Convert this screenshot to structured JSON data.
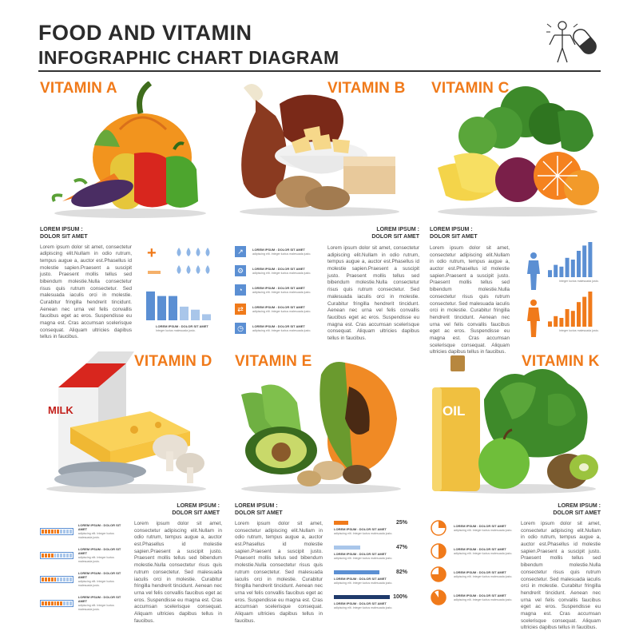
{
  "header": {
    "title_line1": "FOOD AND VITAMIN",
    "title_line2": "INFOGRAPHIC CHART DIAGRAM",
    "logo_icon": "human-body-and-pill-icon"
  },
  "colors": {
    "accent_orange": "#f07a1a",
    "accent_blue": "#5b8fd3",
    "light_blue": "#a9c6ea",
    "dark_navy": "#1f3a6b",
    "text_dark": "#333333"
  },
  "lorem": {
    "head1": "LOREM IPSUM :",
    "head2": "DOLOR SIT AMET",
    "body": "Lorem ipsum dolor sit amet, consectetur adipiscing elit.Nullam in odio rutrum, tempus augue a, auctor est.Phasellus id molestie sapien.Praesent a suscipit justo. Praesent mollis tellus sed bibendum molestie.Nulla consectetur risus quis rutrum consectetur. Sed malesuada iaculis orci in molestie. Curabitur fringilla hendrerit tincidunt. Aenean nec urna vel felis convallis faucibus eget ac eros. Suspendisse eu magna est. Cras accumsan scelerisque consequat. Aliquam ultricies dapibus tellus in faucibus.",
    "chart_caption": "LOREM IPSUM : DOLOR SIT AMET",
    "chart_sub": "Integer luctus malesuada justo.",
    "item_title": "LOREM IPSUM : DOLOR SIT AMET",
    "item_sub": "adipiscing elit. Integer luctus malesuada justo."
  },
  "sections": {
    "vitamin_a": {
      "heading": "VITAMIN A",
      "foods": "pumpkin, pepper, carrot, eggplant, corn"
    },
    "vitamin_b": {
      "heading": "VITAMIN B",
      "foods": "meat, pasta, potato, bread"
    },
    "vitamin_c": {
      "heading": "VITAMIN C",
      "foods": "broccoli, orange, banana, beet"
    },
    "vitamin_d": {
      "heading": "VITAMIN D",
      "foods": "milk, cheese, fish, mushroom",
      "milk_label": "MILK"
    },
    "vitamin_e": {
      "heading": "VITAMIN E",
      "foods": "papaya, avocado, nuts, cucumber"
    },
    "vitamin_k": {
      "heading": "VITAMIN K",
      "foods": "oil, apple, kiwi, spinach",
      "oil_label": "OIL"
    }
  },
  "vitamin_e_bars": [
    {
      "percent_label": "25%",
      "fraction": 0.25,
      "color": "#f07a1a"
    },
    {
      "percent_label": "47%",
      "fraction": 0.47,
      "color": "#a9c6ea"
    },
    {
      "percent_label": "82%",
      "fraction": 0.82,
      "color": "#5b8fd3"
    },
    {
      "percent_label": "100%",
      "fraction": 1.0,
      "color": "#1f3a6b"
    }
  ],
  "vitamin_k_pies": [
    {
      "fraction": 0.25
    },
    {
      "fraction": 0.5
    },
    {
      "fraction": 0.75
    },
    {
      "fraction": 0.9
    }
  ],
  "vitamin_d_rows": [
    {
      "filled": 6
    },
    {
      "filled": 4
    },
    {
      "filled": 5
    },
    {
      "filled": 7
    }
  ],
  "vitamin_a_bars": [
    0.95,
    0.8,
    0.8,
    0.45,
    0.35,
    0.2
  ],
  "vitamin_c_bars_blue": [
    0.2,
    0.35,
    0.3,
    0.55,
    0.5,
    0.75,
    0.9,
    1.0
  ],
  "vitamin_c_bars_orange": [
    0.15,
    0.3,
    0.25,
    0.5,
    0.45,
    0.7,
    0.85,
    1.0
  ],
  "vitamin_b_icons": [
    "chart-line-icon",
    "settings-icon",
    "pie-icon",
    "shuffle-icon",
    "clock-icon"
  ]
}
